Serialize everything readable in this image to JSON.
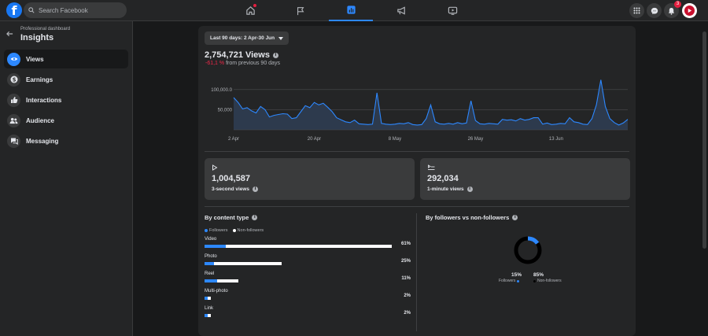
{
  "search": {
    "placeholder": "Search Facebook"
  },
  "notifications": {
    "count": "3"
  },
  "sidebar": {
    "label": "Professional dashboard",
    "title": "Insights",
    "items": [
      {
        "label": "Views",
        "icon": "eye-icon",
        "active": true
      },
      {
        "label": "Earnings",
        "icon": "dollar-icon",
        "active": false
      },
      {
        "label": "Interactions",
        "icon": "thumbs-up-icon",
        "active": false
      },
      {
        "label": "Audience",
        "icon": "people-icon",
        "active": false
      },
      {
        "label": "Messaging",
        "icon": "chat-icon",
        "active": false
      }
    ]
  },
  "main": {
    "date_range": "Last 90 days: 2 Apr-30 Jun",
    "views_total": "2,754,721 Views",
    "views_change": "-61,1 %",
    "views_change_suffix": "from previous 90 days",
    "cards": [
      {
        "value": "1,004,587",
        "label": "3-second views"
      },
      {
        "value": "292,034",
        "label": "1-minute views"
      }
    ],
    "content_type": {
      "title": "By content type",
      "legend": [
        "Followers",
        "Non-followers"
      ],
      "rows": [
        {
          "label": "Video",
          "pct": "61%",
          "followers": 7,
          "non_followers": 54
        },
        {
          "label": "Photo",
          "pct": "25%",
          "followers": 3,
          "non_followers": 22
        },
        {
          "label": "Reel",
          "pct": "11%",
          "followers": 4,
          "non_followers": 7
        },
        {
          "label": "Multi-photo",
          "pct": "2%",
          "followers": 1,
          "non_followers": 1
        },
        {
          "label": "Link",
          "pct": "2%",
          "followers": 1,
          "non_followers": 1
        }
      ]
    },
    "followers_split": {
      "title": "By followers vs non-followers",
      "followers_pct": "15%",
      "non_followers_pct": "85%",
      "followers_label": "Followers",
      "non_followers_label": "Non-followers"
    }
  },
  "colors": {
    "accent": "#2d88ff",
    "negative": "#f02849",
    "non_followers": "#ffffff"
  },
  "chart_data": {
    "type": "area",
    "yticks": [
      "100,000.0",
      "50,000"
    ],
    "ytick_values": [
      100000,
      50000
    ],
    "ylim": [
      0,
      125000
    ],
    "xticks": [
      "2 Apr",
      "20 Apr",
      "8 May",
      "26 May",
      "13 Jun"
    ],
    "xtick_positions": [
      0,
      18,
      36,
      54,
      72
    ],
    "x": [
      0,
      1,
      2,
      3,
      4,
      5,
      6,
      7,
      8,
      9,
      10,
      11,
      12,
      13,
      14,
      15,
      16,
      17,
      18,
      19,
      20,
      21,
      22,
      23,
      24,
      25,
      26,
      27,
      28,
      29,
      30,
      31,
      32,
      33,
      34,
      35,
      36,
      37,
      38,
      39,
      40,
      41,
      42,
      43,
      44,
      45,
      46,
      47,
      48,
      49,
      50,
      51,
      52,
      53,
      54,
      55,
      56,
      57,
      58,
      59,
      60,
      61,
      62,
      63,
      64,
      65,
      66,
      67,
      68,
      69,
      70,
      71,
      72,
      73,
      74,
      75,
      76,
      77,
      78,
      79,
      80,
      81,
      82,
      83,
      84,
      85,
      86,
      87,
      88
    ],
    "values": [
      80000,
      68000,
      52000,
      55000,
      47000,
      42000,
      58000,
      50000,
      32000,
      36000,
      38000,
      40000,
      39000,
      28000,
      30000,
      45000,
      60000,
      55000,
      68000,
      62000,
      66000,
      56000,
      45000,
      30000,
      25000,
      20000,
      18000,
      24000,
      15000,
      14000,
      13000,
      14000,
      92000,
      16000,
      14000,
      13000,
      14000,
      16000,
      15000,
      18000,
      13000,
      12000,
      13000,
      28000,
      62000,
      20000,
      15000,
      14000,
      16000,
      14000,
      18000,
      15000,
      17000,
      72000,
      23000,
      15000,
      14000,
      16000,
      15000,
      14000,
      26000,
      24000,
      25000,
      22000,
      28000,
      24000,
      26000,
      30000,
      30000,
      14000,
      17000,
      13000,
      14000,
      16000,
      15000,
      30000,
      20000,
      18000,
      14000,
      13000,
      28000,
      62000,
      124000,
      58000,
      28000,
      18000,
      12000,
      17000,
      26000
    ]
  }
}
